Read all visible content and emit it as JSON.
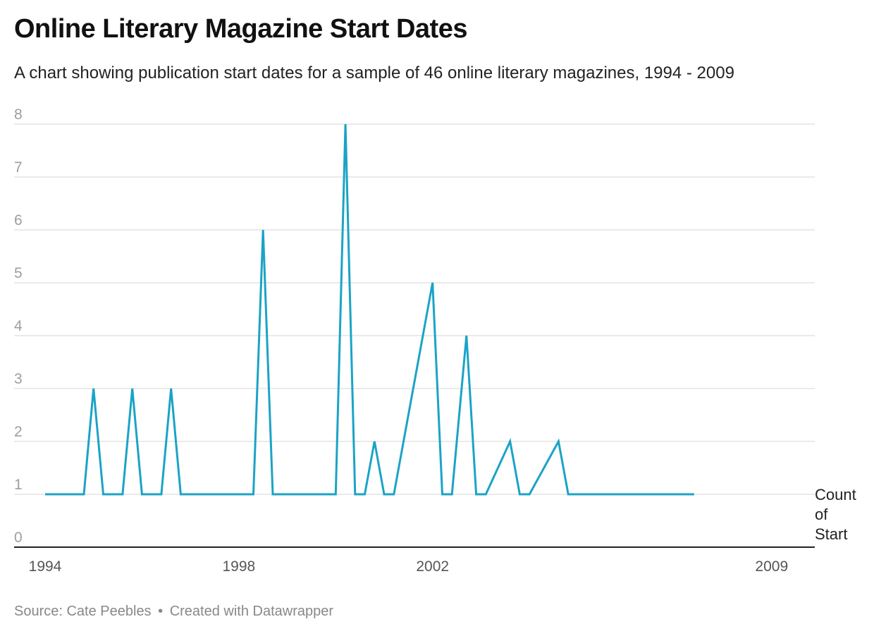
{
  "header": {
    "title": "Online Literary Magazine Start Dates",
    "subtitle": "A chart showing publication start dates for a sample of 46 online literary magazines, 1994 - 2009"
  },
  "footer": {
    "source": "Source: Cate Peebles",
    "separator": "•",
    "credit": "Created with Datawrapper"
  },
  "colors": {
    "line": "#1ba3c6",
    "grid": "#e3e3e3",
    "axis": "#222222"
  },
  "chart_data": {
    "type": "line",
    "title": "Online Literary Magazine Start Dates",
    "subtitle": "A chart showing publication start dates for a sample of 46 online literary magazines, 1994 - 2009",
    "xlabel": "",
    "ylabel": "",
    "ylim": [
      0,
      8
    ],
    "xlim": [
      1994,
      2009.6
    ],
    "y_ticks": [
      0,
      1,
      2,
      3,
      4,
      5,
      6,
      7,
      8
    ],
    "x_ticks": [
      "1994",
      "1998",
      "2002",
      "2009"
    ],
    "grid": true,
    "series": [
      {
        "name": "Count of Start",
        "x": [
          1994.0,
          1994.8,
          1995.0,
          1995.2,
          1995.6,
          1995.8,
          1996.0,
          1996.4,
          1996.6,
          1996.8,
          1998.3,
          1998.5,
          1998.7,
          2000.0,
          2000.2,
          2000.4,
          2000.6,
          2000.8,
          2001.0,
          2001.2,
          2002.0,
          2002.2,
          2002.4,
          2002.7,
          2002.9,
          2003.1,
          2003.6,
          2003.8,
          2004.0,
          2004.6,
          2004.8,
          2005.0,
          2005.4,
          2005.6,
          2005.8,
          2006.4,
          2006.6,
          2006.8,
          2007.4
        ],
        "values": [
          1,
          1,
          3,
          1,
          1,
          3,
          1,
          1,
          3,
          1,
          1,
          6,
          1,
          1,
          8,
          1,
          1,
          2,
          1,
          1,
          5,
          1,
          1,
          4,
          1,
          1,
          2,
          1,
          1,
          2,
          1,
          1,
          1,
          1,
          1,
          1,
          1,
          1,
          1
        ]
      }
    ]
  }
}
